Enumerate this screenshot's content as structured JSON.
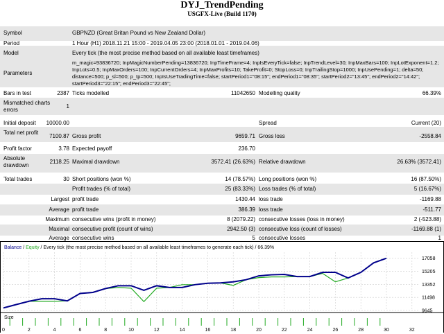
{
  "title": "DYJ_TrendPending",
  "subtitle": "USGFX-Live (Build 1170)",
  "labels": {
    "symbol": "Symbol",
    "period": "Period",
    "model": "Model",
    "parameters": "Parameters",
    "bars_in_test": "Bars in test",
    "ticks_modelled": "Ticks modelled",
    "modelling_quality": "Modelling quality",
    "mismatched_charts_errors": "Mismatched charts errors",
    "initial_deposit": "Initial deposit",
    "spread": "Spread",
    "total_net_profit": "Total net profit",
    "gross_profit": "Gross profit",
    "gross_loss": "Gross loss",
    "profit_factor": "Profit factor",
    "expected_payoff": "Expected payoff",
    "absolute_drawdown": "Absolute drawdown",
    "maximal_drawdown": "Maximal drawdown",
    "relative_drawdown": "Relative drawdown",
    "total_trades": "Total trades",
    "short_positions": "Short positions (won %)",
    "long_positions": "Long positions (won %)",
    "profit_trades": "Profit trades (% of total)",
    "loss_trades": "Loss trades (% of total)",
    "largest": "Largest",
    "average": "Average",
    "maximum": "Maximum",
    "maximal": "Maximal",
    "profit_trade": "profit trade",
    "loss_trade": "loss trade",
    "cons_wins_money": "consecutive wins (profit in money)",
    "cons_losses_money": "consecutive losses (loss in money)",
    "cons_profit_count": "consecutive profit (count of wins)",
    "cons_loss_count": "consecutive loss (count of losses)",
    "cons_wins": "consecutive wins",
    "cons_losses": "consecutive losses"
  },
  "values": {
    "symbol": "GBPNZD (Great Britan Pound vs New Zealand Dollar)",
    "period": "1 Hour (H1) 2018.11.21 15:00 - 2019.04.05 23:00 (2018.01.01 - 2019.04.06)",
    "model": "Every tick (the most precise method based on all available least timeframes)",
    "parameters": "m_magic=93836720; InpMagicNumberPending=13836720; InpTimeFrame=4; InpIsEveryTick=false; InpTrendLevel=30; InpMaxBars=100; InpLotExponent=1.2; InpLots=0.5; InpMaxOrders=100; InpCurrentOrders=4; InpMaxProfits=10; TakeProfit=0; StopLoss=0; InpTrailingStop=1000; InpUsePending=1; delta=50; distance=500; p_sl=500; p_tp=500; InpIsUseTradingTime=false; startPeriod1=\"08:15\"; endPeriod1=\"08:35\"; startPeriod2=\"13:45\"; endPeriod2=\"14:42\"; startPeriod3=\"22:15\"; endPeriod3=\"22:45\";",
    "bars_in_test": "2387",
    "ticks_modelled": "11042650",
    "modelling_quality": "66.39%",
    "mismatched_charts_errors": "1",
    "initial_deposit": "10000.00",
    "spread": "Current (20)",
    "total_net_profit": "7100.87",
    "gross_profit": "9659.71",
    "gross_loss": "-2558.84",
    "profit_factor": "3.78",
    "expected_payoff": "236.70",
    "absolute_drawdown": "2118.25",
    "maximal_drawdown": "3572.41 (26.63%)",
    "relative_drawdown": "26.63% (3572.41)",
    "total_trades": "30",
    "short_positions": "14 (78.57%)",
    "long_positions": "16 (87.50%)",
    "profit_trades": "25 (83.33%)",
    "loss_trades": "5 (16.67%)",
    "largest_profit": "1430.44",
    "largest_loss": "-1169.88",
    "average_profit": "386.39",
    "average_loss": "-511.77",
    "max_cons_wins": "8 (2079.22)",
    "max_cons_losses": "2 (-523.88)",
    "maximal_cons_profit": "2942.50 (3)",
    "maximal_cons_loss": "-1169.88 (1)",
    "avg_cons_wins": "5",
    "avg_cons_losses": "1"
  },
  "chart_data": {
    "type": "line",
    "legend": {
      "balance": "Balance",
      "sep1": " / ",
      "equity": "Equity",
      "sep2": " / ",
      "model": "Every tick (the most precise method based on all available least timeframes to generate each tick)",
      "sep3": " / ",
      "quality": "66.39%"
    },
    "colors": {
      "balance": "#00008b",
      "equity": "#22aa22",
      "size": "#22aa22",
      "grid": "#cccccc"
    },
    "x": [
      0,
      1,
      2,
      3,
      4,
      5,
      6,
      7,
      8,
      9,
      10,
      11,
      12,
      13,
      14,
      15,
      16,
      17,
      18,
      19,
      20,
      21,
      22,
      23,
      24,
      25,
      26,
      27,
      28,
      29,
      30
    ],
    "xticks": [
      "0",
      "2",
      "4",
      "6",
      "8",
      "10",
      "12",
      "14",
      "16",
      "18",
      "20",
      "22",
      "24",
      "26",
      "28",
      "30",
      "32"
    ],
    "xlim": [
      0,
      32.5
    ],
    "ylim": [
      9645,
      17900
    ],
    "yticks": [
      "17058",
      "15205",
      "13352",
      "11498",
      "9645"
    ],
    "series": [
      {
        "name": "Balance",
        "values": [
          10000,
          10480,
          10950,
          11300,
          11300,
          11000,
          12050,
          12200,
          12750,
          13150,
          13150,
          12500,
          13150,
          12900,
          12900,
          13300,
          13500,
          13550,
          13700,
          14000,
          14550,
          14700,
          14750,
          14450,
          14450,
          15050,
          15050,
          14250,
          15050,
          16400,
          17050
        ]
      },
      {
        "name": "Equity",
        "values": [
          10000,
          10480,
          10950,
          10950,
          10950,
          11000,
          12050,
          12200,
          12750,
          12900,
          12800,
          10900,
          12800,
          12900,
          13300,
          13300,
          13500,
          13550,
          13200,
          14000,
          14300,
          14400,
          14400,
          14450,
          14450,
          14900,
          13700,
          14250,
          15050,
          16400,
          17050
        ]
      }
    ],
    "size_label": "Size",
    "size_bars": [
      1,
      1,
      1,
      1,
      1,
      1,
      1,
      1,
      1,
      1,
      1,
      1,
      1,
      1,
      1,
      1,
      1,
      1,
      1,
      1,
      1,
      1,
      1,
      1,
      1,
      1,
      1,
      1,
      1,
      1
    ]
  }
}
